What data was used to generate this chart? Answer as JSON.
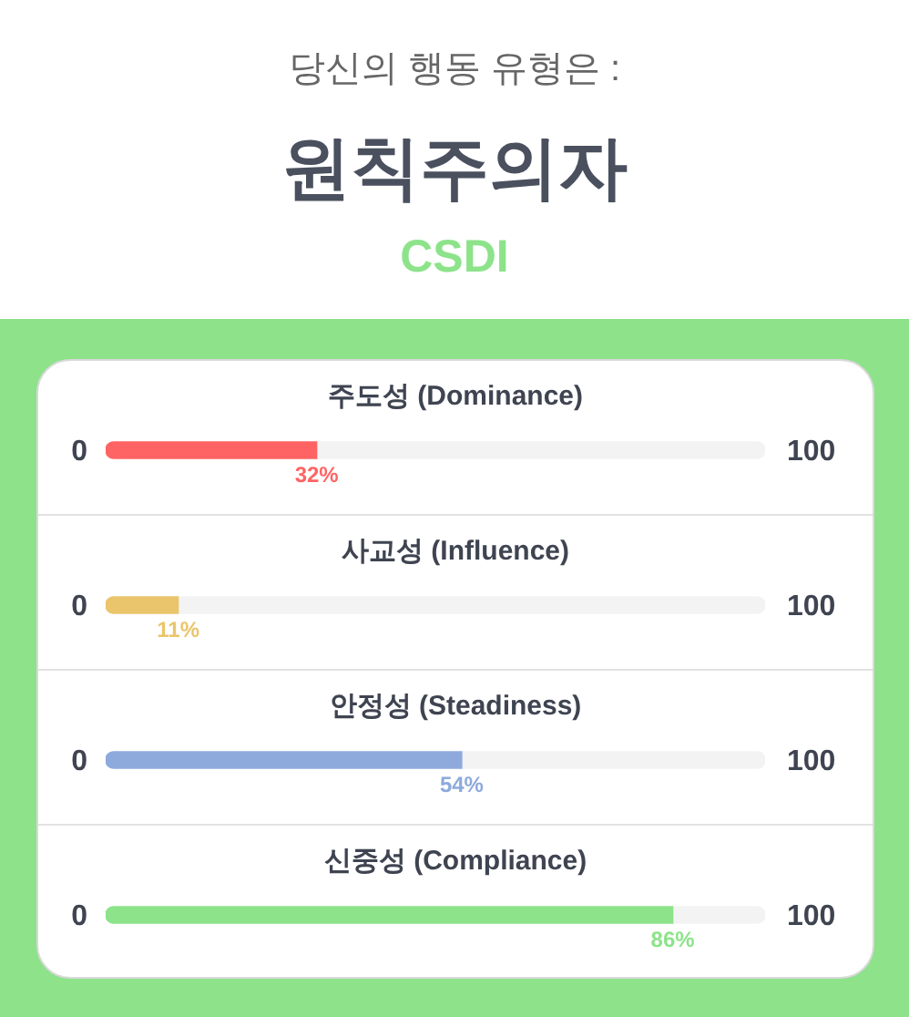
{
  "chart_data": {
    "type": "bar",
    "orientation": "horizontal",
    "stacked": true,
    "title": "원칙주의자",
    "subtitle": "CSDI",
    "annotations": [
      "당신의 행동 유형은 :",
      "0",
      "100",
      "0",
      "100",
      "0",
      "100",
      "0",
      "100"
    ],
    "categories": [
      "주도성 (Dominance)",
      "사교성 (Influence)",
      "안정성 (Steadiness)",
      "신중성 (Compliance)"
    ],
    "series": [
      {
        "colors": [
          "#ff6464",
          "#eac56b",
          "#8eaadc",
          "#8de38a"
        ],
        "values": [
          32,
          11,
          54,
          86
        ],
        "value_labels": [
          "32%",
          "11%",
          "54%",
          "86%"
        ]
      },
      {
        "color": "#f3f3f3",
        "values": [
          68,
          89,
          46,
          14
        ]
      }
    ],
    "xlim": [
      0,
      100
    ]
  }
}
